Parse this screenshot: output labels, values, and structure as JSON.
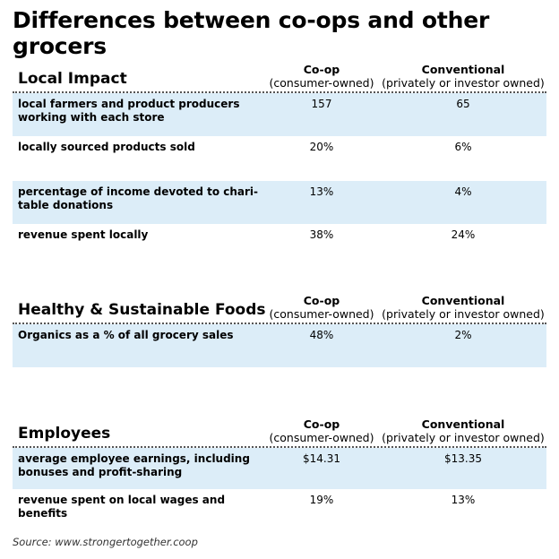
{
  "title": "Differences between co-ops and other grocers",
  "source": "Source: www.strongertogether.coop",
  "chart_data": {
    "type": "table",
    "columns": [
      {
        "name": "Co-op",
        "sub": "(consumer-owned)"
      },
      {
        "name": "Conventional",
        "sub": "(privately or investor owned)"
      }
    ],
    "sections": [
      {
        "title": "Local Impact",
        "rows": [
          {
            "label": "local farmers and product producers working with each store",
            "coop": "157",
            "conventional": "65"
          },
          {
            "label": "locally sourced products sold",
            "coop": "20%",
            "conventional": "6%"
          },
          {
            "label": "percentage of income devoted to chari-table donations",
            "coop": "13%",
            "conventional": "4%"
          },
          {
            "label": "revenue spent locally",
            "coop": "38%",
            "conventional": "24%"
          }
        ]
      },
      {
        "title": "Healthy & Sustainable Foods",
        "rows": [
          {
            "label": "Organics as a % of all grocery sales",
            "coop": "48%",
            "conventional": "2%"
          }
        ]
      },
      {
        "title": "Employees",
        "rows": [
          {
            "label": "average employee earnings, including bonuses and profit-sharing",
            "coop": "$14.31",
            "conventional": "$13.35"
          },
          {
            "label": "revenue spent on local wages and benefits",
            "coop": "19%",
            "conventional": "13%"
          }
        ]
      }
    ]
  }
}
